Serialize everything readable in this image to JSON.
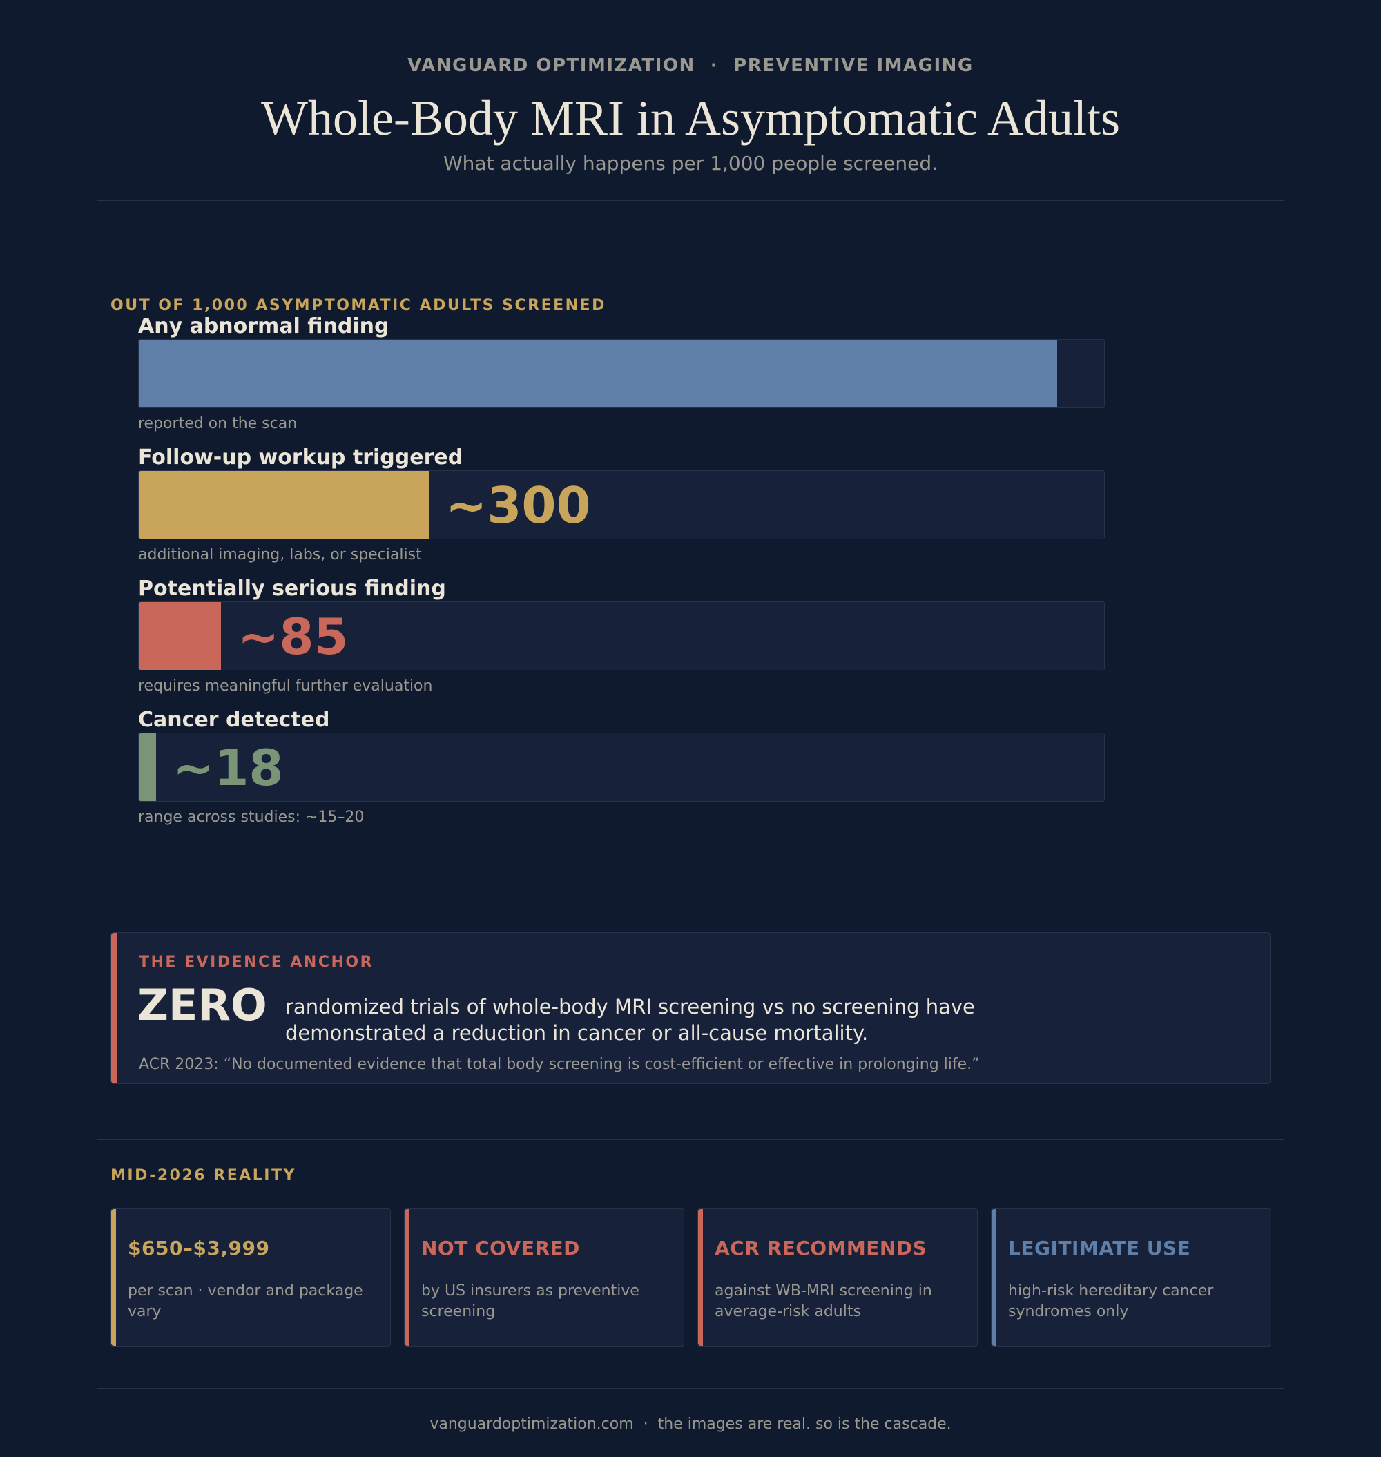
{
  "header": {
    "brand": "VANGUARD OPTIMIZATION",
    "separator": "·",
    "section": "PREVENTIVE IMAGING",
    "title": "Whole-Body MRI in Asymptomatic Adults",
    "subtitle": "What actually happens per 1,000 people screened."
  },
  "chart_data": {
    "type": "bar",
    "orientation": "horizontal",
    "title": "OUT OF 1,000 ASYMPTOMATIC ADULTS SCREENED",
    "xlim": [
      0,
      1000
    ],
    "grid": false,
    "categories": [
      "Any abnormal finding",
      "Follow-up workup triggered",
      "Potentially serious finding",
      "Cancer detected"
    ],
    "values": [
      950,
      300,
      85,
      18
    ],
    "value_labels": [
      "",
      "~300",
      "~85",
      "~18"
    ],
    "notes": [
      "reported on the scan",
      "additional imaging, labs, or specialist",
      "requires meaningful further evaluation",
      "range across studies: ~15–20"
    ],
    "colors": [
      "#5f7fa8",
      "#c9a55b",
      "#c9675a",
      "#7a9575"
    ]
  },
  "evidence": {
    "label": "THE EVIDENCE ANCHOR",
    "headline": "ZERO",
    "text": "randomized trials of whole-body MRI screening vs no screening have demonstrated a reduction in cancer or all-cause mortality.",
    "quote": "ACR 2023: “No documented evidence that total body screening is cost-efficient or effective in prolonging life.”",
    "accent_color": "#c9675a"
  },
  "reality": {
    "label": "MID-2026 REALITY",
    "cards": [
      {
        "head": "$650–$3,999",
        "body": "per scan · vendor and package vary",
        "color": "#c9a55b"
      },
      {
        "head": "NOT COVERED",
        "body": "by US insurers as preventive screening",
        "color": "#c9675a"
      },
      {
        "head": "ACR RECOMMENDS",
        "body": "against WB-MRI screening in average-risk adults",
        "color": "#c9675a"
      },
      {
        "head": "LEGITIMATE USE",
        "body": "high-risk hereditary cancer syndromes only",
        "color": "#5f7fa8"
      }
    ]
  },
  "footer": {
    "site": "vanguardoptimization.com",
    "separator": "·",
    "tagline": "the images are real. so is the cascade."
  }
}
